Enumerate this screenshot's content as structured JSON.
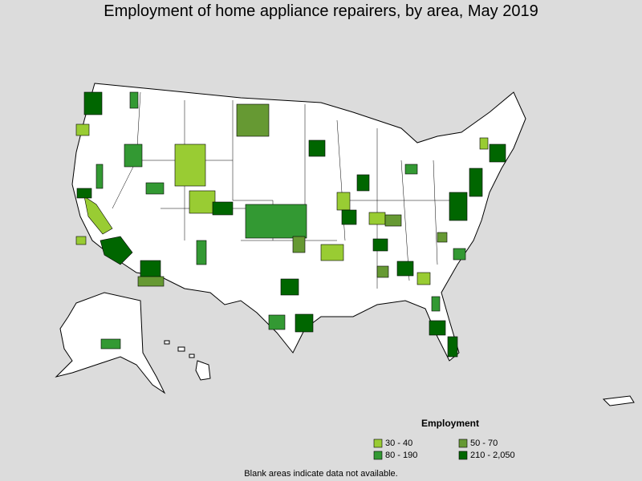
{
  "header": {
    "title": "Employment of home appliance repairers, by area, May 2019"
  },
  "legend": {
    "title": "Employment",
    "items": [
      {
        "label": "30 - 40",
        "color": "#99cc33"
      },
      {
        "label": "50 - 70",
        "color": "#669933"
      },
      {
        "label": "80 - 190",
        "color": "#339933"
      },
      {
        "label": "210 - 2,050",
        "color": "#006600"
      }
    ]
  },
  "footnote": "Blank areas indicate data not available."
}
